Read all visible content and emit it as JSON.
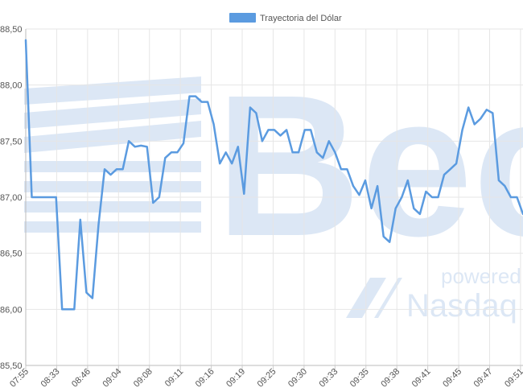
{
  "chart_data": {
    "type": "line",
    "legend": {
      "position": "top-center",
      "label": "Trayectoria del Dólar"
    },
    "series": [
      {
        "name": "Trayectoria del Dólar",
        "color": "#5b9be0",
        "values": [
          88.4,
          87.0,
          87.0,
          87.0,
          87.0,
          87.0,
          86.0,
          86.0,
          86.0,
          86.8,
          86.15,
          86.1,
          86.75,
          87.25,
          87.2,
          87.25,
          87.25,
          87.5,
          87.45,
          87.46,
          87.45,
          86.95,
          87.0,
          87.35,
          87.4,
          87.4,
          87.48,
          87.9,
          87.9,
          87.85,
          87.85,
          87.65,
          87.3,
          87.4,
          87.3,
          87.45,
          87.03,
          87.8,
          87.75,
          87.5,
          87.6,
          87.6,
          87.55,
          87.6,
          87.4,
          87.4,
          87.6,
          87.6,
          87.4,
          87.35,
          87.5,
          87.4,
          87.25,
          87.25,
          87.1,
          87.02,
          87.15,
          86.9,
          87.1,
          86.65,
          86.6,
          86.9,
          87.0,
          87.15,
          86.9,
          86.85,
          87.05,
          87.0,
          87.0,
          87.2,
          87.25,
          87.3,
          87.6,
          87.8,
          87.65,
          87.7,
          87.78,
          87.75,
          87.15,
          87.1,
          87.0,
          87.0,
          86.85
        ]
      }
    ],
    "x_tick_labels": [
      "07:55",
      "08:33",
      "08:46",
      "09:04",
      "09:08",
      "09:11",
      "09:16",
      "09:19",
      "09:25",
      "09:30",
      "09:33",
      "09:35",
      "09:38",
      "09:41",
      "09:45",
      "09:47",
      "09:51"
    ],
    "y_tick_labels": [
      "85,50",
      "86,00",
      "86,50",
      "87,00",
      "87,50",
      "88,00",
      "88,50"
    ],
    "ylim": [
      85.5,
      88.5
    ],
    "grid": true
  },
  "watermark": {
    "brand": "Bec",
    "tagline": "powered by",
    "partner": "Nasdaq"
  }
}
